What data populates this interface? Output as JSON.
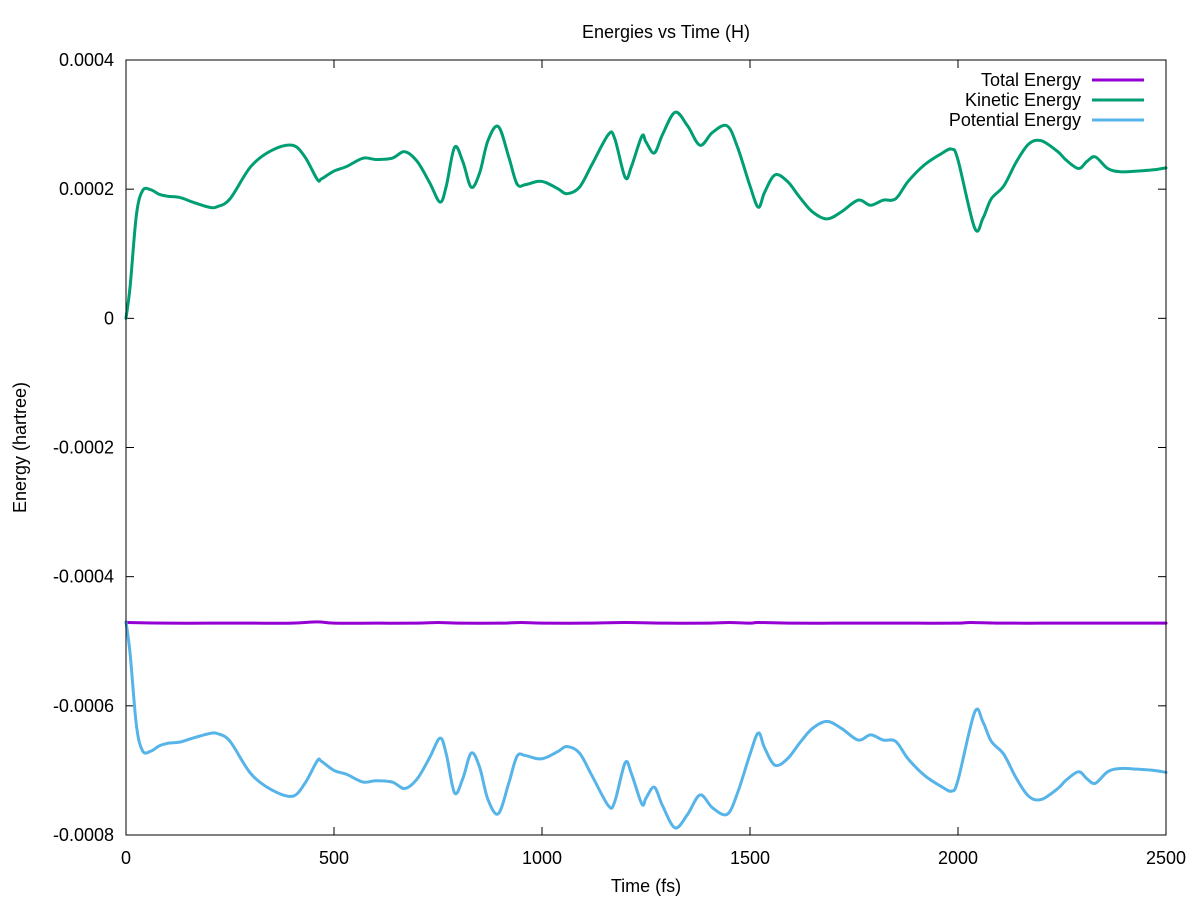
{
  "chart_data": {
    "type": "line",
    "title": "Energies vs Time (H)",
    "xlabel": "Time (fs)",
    "ylabel": "Energy (hartree)",
    "xlim": [
      0,
      2500
    ],
    "ylim": [
      -0.0008,
      0.0004
    ],
    "x_ticks": [
      {
        "value": 0,
        "label": "0"
      },
      {
        "value": 500,
        "label": "500"
      },
      {
        "value": 1000,
        "label": "1000"
      },
      {
        "value": 1500,
        "label": "1500"
      },
      {
        "value": 2000,
        "label": "2000"
      },
      {
        "value": 2500,
        "label": "2500"
      }
    ],
    "y_ticks": [
      {
        "value": 0.0004,
        "label": "0.0004"
      },
      {
        "value": 0.0002,
        "label": "0.0002"
      },
      {
        "value": 0,
        "label": "0"
      },
      {
        "value": -0.0002,
        "label": "-0.0002"
      },
      {
        "value": -0.0004,
        "label": "-0.0004"
      },
      {
        "value": -0.0006,
        "label": "-0.0006"
      },
      {
        "value": -0.0008,
        "label": "-0.0008"
      }
    ],
    "grid": false,
    "legend_position": "top-right",
    "series": [
      {
        "name": "Total Energy",
        "color": "#9400d3",
        "x": [
          0,
          100,
          200,
          300,
          400,
          460,
          500,
          600,
          700,
          750,
          800,
          900,
          950,
          1000,
          1100,
          1200,
          1300,
          1400,
          1450,
          1500,
          1520,
          1600,
          1700,
          1800,
          1900,
          2000,
          2030,
          2100,
          2200,
          2300,
          2400,
          2500
        ],
        "y": [
          -0.000471,
          -0.000472,
          -0.000472,
          -0.000472,
          -0.000472,
          -0.00047,
          -0.000472,
          -0.000472,
          -0.000472,
          -0.000471,
          -0.000472,
          -0.000472,
          -0.000471,
          -0.000472,
          -0.000472,
          -0.000471,
          -0.000472,
          -0.000472,
          -0.000471,
          -0.000472,
          -0.000471,
          -0.000472,
          -0.000472,
          -0.000472,
          -0.000472,
          -0.000472,
          -0.000471,
          -0.000472,
          -0.000472,
          -0.000472,
          -0.000472,
          -0.000472
        ]
      },
      {
        "name": "Kinetic Energy",
        "color": "#009e73",
        "x": [
          0,
          10,
          25,
          40,
          60,
          80,
          100,
          130,
          160,
          200,
          220,
          250,
          300,
          350,
          400,
          430,
          460,
          470,
          500,
          530,
          570,
          600,
          640,
          670,
          700,
          730,
          755,
          770,
          790,
          810,
          830,
          850,
          870,
          895,
          920,
          940,
          960,
          990,
          1010,
          1040,
          1060,
          1090,
          1120,
          1160,
          1175,
          1200,
          1215,
          1240,
          1250,
          1270,
          1290,
          1320,
          1350,
          1380,
          1410,
          1445,
          1470,
          1500,
          1520,
          1535,
          1560,
          1590,
          1620,
          1650,
          1685,
          1720,
          1760,
          1790,
          1820,
          1850,
          1880,
          1920,
          1960,
          1985,
          2000,
          2040,
          2060,
          2080,
          2110,
          2140,
          2170,
          2200,
          2240,
          2260,
          2290,
          2310,
          2330,
          2360,
          2390,
          2430,
          2470,
          2500
        ],
        "y": [
          0.0,
          5e-05,
          0.00016,
          0.000198,
          0.000199,
          0.000192,
          0.000189,
          0.000187,
          0.00018,
          0.000172,
          0.000173,
          0.000185,
          0.000235,
          0.00026,
          0.000268,
          0.00025,
          0.000215,
          0.000216,
          0.000228,
          0.000235,
          0.000248,
          0.000246,
          0.000248,
          0.000258,
          0.000243,
          0.00021,
          0.00018,
          0.000205,
          0.000265,
          0.000242,
          0.000203,
          0.000225,
          0.000275,
          0.000297,
          0.00025,
          0.000208,
          0.000207,
          0.000212,
          0.00021,
          0.0002,
          0.000193,
          0.000203,
          0.000238,
          0.000285,
          0.000278,
          0.000218,
          0.000235,
          0.000282,
          0.000273,
          0.000256,
          0.000285,
          0.000319,
          0.000298,
          0.000268,
          0.000288,
          0.000298,
          0.000265,
          0.000205,
          0.000172,
          0.000195,
          0.000222,
          0.000212,
          0.000187,
          0.000165,
          0.000154,
          0.000165,
          0.000183,
          0.000175,
          0.000183,
          0.000185,
          0.000212,
          0.000238,
          0.000255,
          0.000262,
          0.000245,
          0.00014,
          0.000155,
          0.000185,
          0.000205,
          0.000242,
          0.00027,
          0.000275,
          0.000258,
          0.000245,
          0.000232,
          0.000243,
          0.00025,
          0.000232,
          0.000227,
          0.000228,
          0.00023,
          0.000233
        ]
      },
      {
        "name": "Potential Energy",
        "color": "#56b4e9",
        "x": [
          0,
          10,
          25,
          40,
          60,
          80,
          100,
          130,
          160,
          200,
          220,
          250,
          300,
          350,
          400,
          430,
          460,
          470,
          500,
          530,
          570,
          600,
          640,
          670,
          700,
          730,
          755,
          770,
          790,
          810,
          830,
          850,
          870,
          895,
          920,
          940,
          960,
          990,
          1010,
          1040,
          1060,
          1090,
          1120,
          1160,
          1175,
          1200,
          1215,
          1240,
          1250,
          1270,
          1290,
          1320,
          1350,
          1380,
          1410,
          1445,
          1470,
          1500,
          1520,
          1535,
          1560,
          1590,
          1620,
          1650,
          1685,
          1720,
          1760,
          1790,
          1820,
          1850,
          1880,
          1920,
          1960,
          1985,
          2000,
          2040,
          2060,
          2080,
          2110,
          2140,
          2170,
          2200,
          2240,
          2260,
          2290,
          2310,
          2330,
          2360,
          2390,
          2430,
          2470,
          2500
        ],
        "y": [
          -0.00047,
          -0.00052,
          -0.00063,
          -0.00067,
          -0.00067,
          -0.000662,
          -0.000658,
          -0.000656,
          -0.00065,
          -0.000643,
          -0.000643,
          -0.000655,
          -0.000705,
          -0.00073,
          -0.00074,
          -0.00072,
          -0.000685,
          -0.000686,
          -0.0007,
          -0.000706,
          -0.000718,
          -0.000716,
          -0.000718,
          -0.000728,
          -0.000713,
          -0.00068,
          -0.00065,
          -0.000675,
          -0.000735,
          -0.000712,
          -0.000673,
          -0.000695,
          -0.000745,
          -0.000767,
          -0.00072,
          -0.000678,
          -0.000677,
          -0.000682,
          -0.00068,
          -0.00067,
          -0.000663,
          -0.000673,
          -0.000708,
          -0.000755,
          -0.000748,
          -0.000688,
          -0.000705,
          -0.000752,
          -0.000743,
          -0.000726,
          -0.000755,
          -0.000789,
          -0.000768,
          -0.000738,
          -0.000758,
          -0.000768,
          -0.000735,
          -0.000675,
          -0.000642,
          -0.000665,
          -0.000692,
          -0.000682,
          -0.000657,
          -0.000635,
          -0.000624,
          -0.000635,
          -0.000653,
          -0.000645,
          -0.000653,
          -0.000655,
          -0.000682,
          -0.000708,
          -0.000725,
          -0.000732,
          -0.000715,
          -0.00061,
          -0.000625,
          -0.000655,
          -0.000675,
          -0.000712,
          -0.00074,
          -0.000745,
          -0.000728,
          -0.000715,
          -0.000702,
          -0.000713,
          -0.00072,
          -0.000702,
          -0.000697,
          -0.000698,
          -0.0007,
          -0.000703
        ]
      }
    ]
  }
}
